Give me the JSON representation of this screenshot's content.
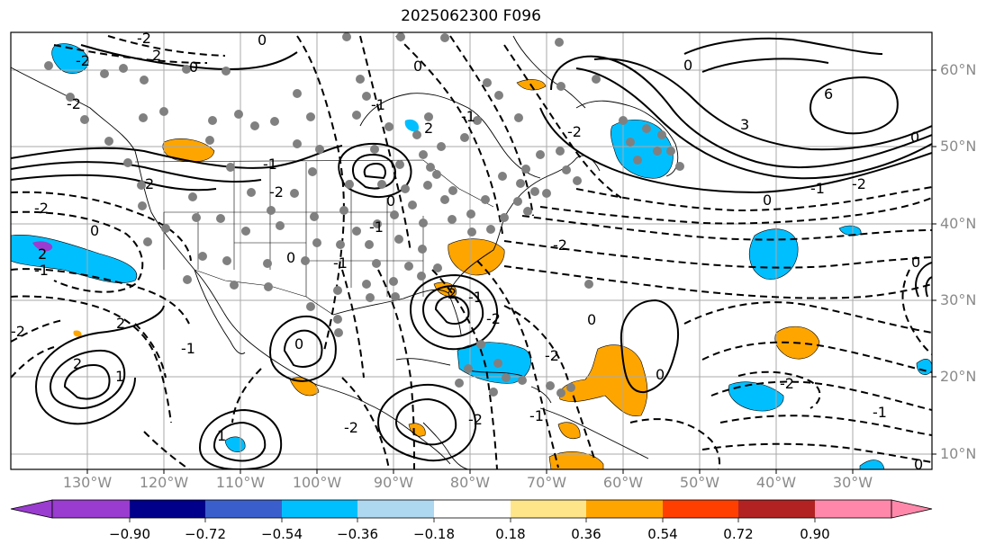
{
  "title": "2025062300 F096",
  "lat_labels": [
    "60°N",
    "50°N",
    "40°N",
    "30°N",
    "20°N",
    "10°N"
  ],
  "lon_labels": [
    "130°W",
    "120°W",
    "110°W",
    "100°W",
    "90°W",
    "80°W",
    "70°W",
    "60°W",
    "50°W",
    "40°W",
    "30°W"
  ],
  "colorbar": {
    "ticks": [
      "−0.90",
      "−0.72",
      "−0.54",
      "−0.36",
      "−0.18",
      "0.18",
      "0.36",
      "0.54",
      "0.72",
      "0.90"
    ],
    "colors": [
      "#9a3ccf",
      "#00008b",
      "#3a5fcd",
      "#00bfff",
      "#add8f0",
      "#ffffff",
      "#ffe58a",
      "#ffa500",
      "#ff3f00",
      "#b22222",
      "#ff88aa"
    ]
  },
  "contour_labels": [
    "-2",
    "0",
    "2",
    "-2",
    "0",
    "-2",
    "0",
    "3",
    "6",
    "0",
    "-1",
    "2",
    "-1",
    "-2",
    "0",
    "-1",
    "0",
    "-2",
    "-1",
    "0",
    "-2",
    "-1",
    "2",
    "0",
    "-2",
    "2",
    "-1",
    "0",
    "-2",
    "-1",
    "0",
    "2",
    "-1",
    "-2",
    "0",
    "2",
    "-2",
    "0",
    "-1",
    "1",
    "-2",
    "2",
    "0",
    "-1",
    "-2",
    "-1",
    "-2",
    "1",
    "-2",
    "0"
  ]
}
